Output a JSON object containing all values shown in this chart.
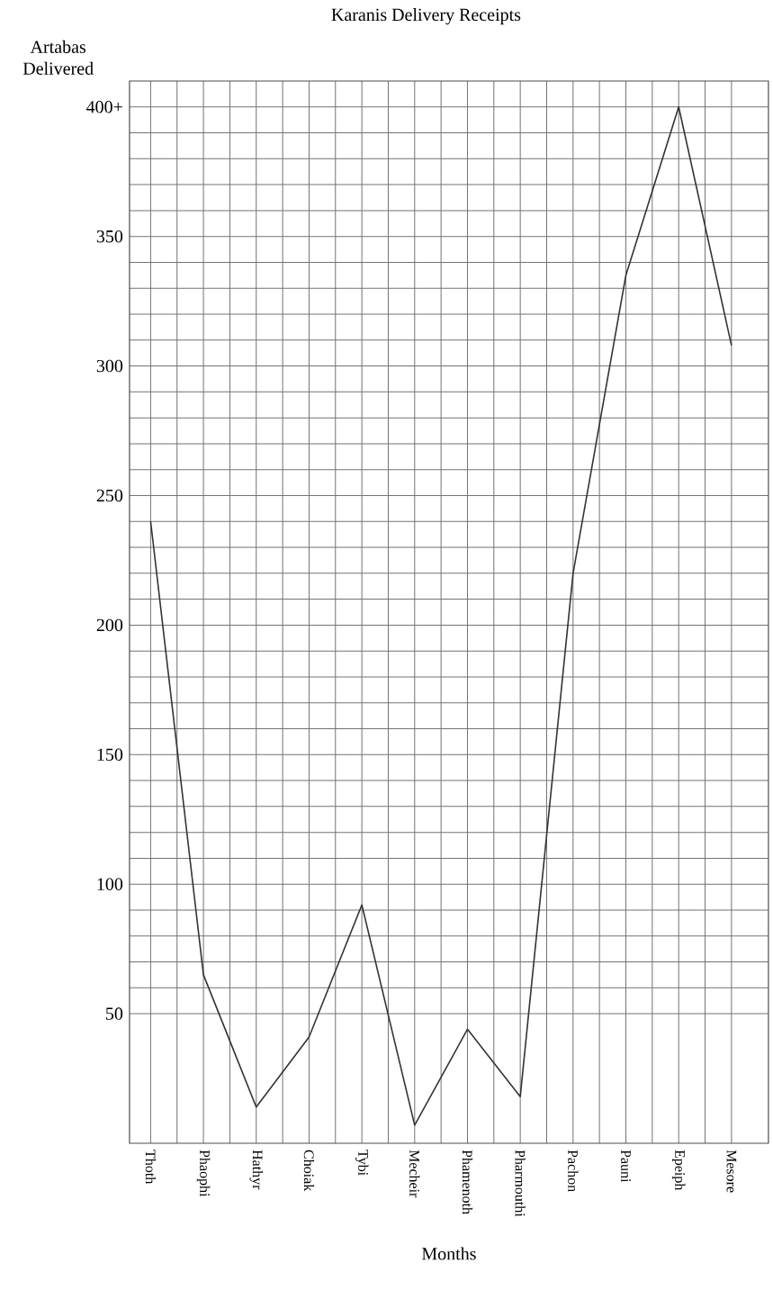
{
  "chart_data": {
    "type": "line",
    "title": "Karanis Delivery Receipts",
    "xlabel": "Months",
    "ylabel": "Artabas Delivered",
    "categories": [
      "Thoth",
      "Phaophi",
      "Hathyr",
      "Choiak",
      "Tybi",
      "Mecheir",
      "Phamenoth",
      "Pharmouthi",
      "Pachon",
      "Pauni",
      "Epeiph",
      "Mesore"
    ],
    "series": [
      {
        "color": "#333333",
        "values": [
          240,
          65,
          14,
          41,
          92,
          7,
          44,
          18,
          220,
          335,
          400,
          308
        ]
      }
    ],
    "ylim": [
      0,
      410
    ],
    "yticks": [
      50,
      100,
      150,
      200,
      250,
      300,
      350,
      {
        "value": 400,
        "label": "400+"
      }
    ],
    "grid": true,
    "marker": "none",
    "line_style": "solid"
  }
}
